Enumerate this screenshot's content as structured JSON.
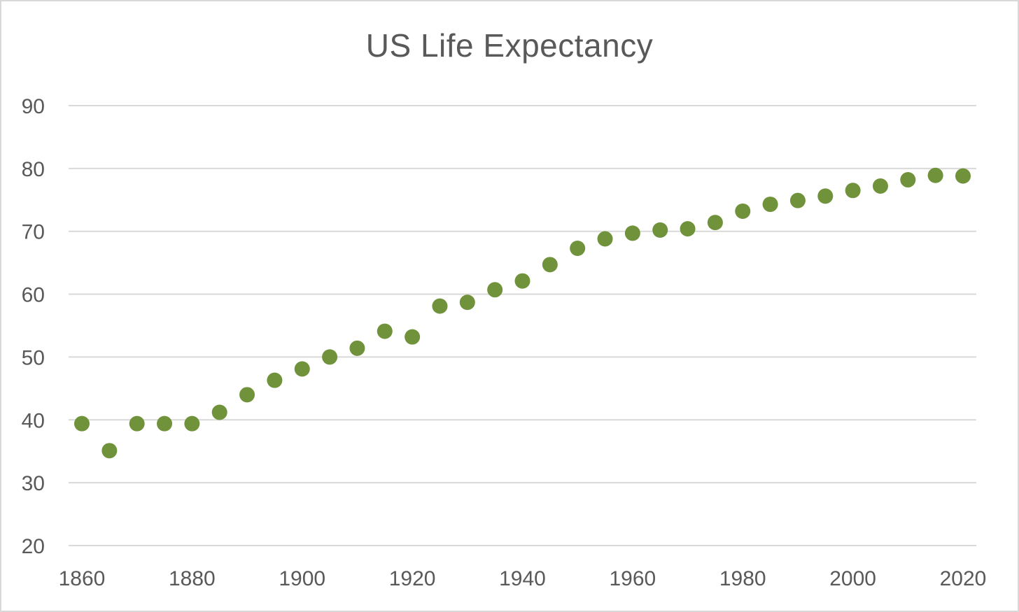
{
  "chart_data": {
    "type": "scatter",
    "title": "US Life Expectancy",
    "xlabel": "",
    "ylabel": "",
    "xlim": [
      1860,
      2020
    ],
    "ylim": [
      20,
      90
    ],
    "x_ticks": [
      1860,
      1880,
      1900,
      1920,
      1940,
      1960,
      1980,
      2000,
      2020
    ],
    "y_ticks": [
      20,
      30,
      40,
      50,
      60,
      70,
      80,
      90
    ],
    "grid": "horizontal",
    "legend": "none",
    "marker_color": "#70923a",
    "series": [
      {
        "x": [
          1860,
          1865,
          1870,
          1875,
          1880,
          1885,
          1890,
          1895,
          1900,
          1905,
          1910,
          1915,
          1920,
          1925,
          1930,
          1935,
          1940,
          1945,
          1950,
          1955,
          1960,
          1965,
          1970,
          1975,
          1980,
          1985,
          1990,
          1995,
          2000,
          2005,
          2010,
          2015,
          2020
        ],
        "y": [
          39.4,
          35.1,
          39.4,
          39.4,
          39.4,
          41.2,
          44.0,
          46.3,
          48.1,
          50.0,
          51.4,
          54.1,
          53.2,
          58.1,
          58.7,
          60.7,
          62.1,
          64.7,
          67.3,
          68.8,
          69.7,
          70.2,
          70.4,
          71.4,
          73.2,
          74.3,
          74.9,
          75.6,
          76.5,
          77.2,
          78.2,
          78.9,
          78.8
        ]
      }
    ]
  }
}
